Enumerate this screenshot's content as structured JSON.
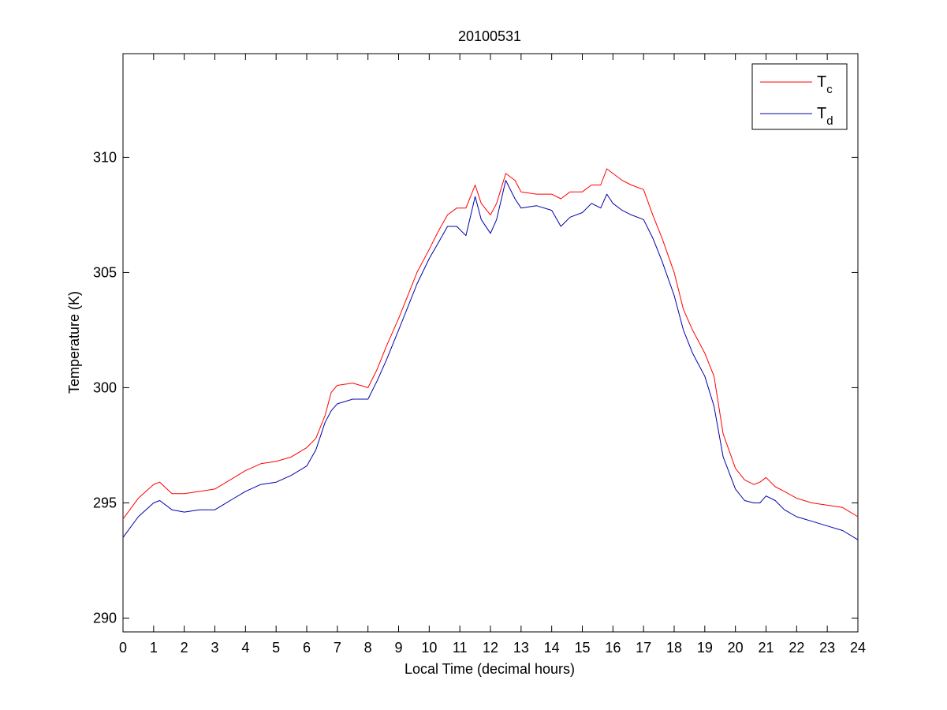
{
  "chart_data": {
    "type": "line",
    "title": "20100531",
    "xlabel": "Local Time (decimal hours)",
    "ylabel": "Temperature (K)",
    "xlim": [
      0,
      24
    ],
    "ylim": [
      289.4,
      314.5
    ],
    "xticks": [
      "0",
      "1",
      "2",
      "3",
      "4",
      "5",
      "6",
      "7",
      "8",
      "9",
      "10",
      "11",
      "12",
      "13",
      "14",
      "15",
      "16",
      "17",
      "18",
      "19",
      "20",
      "21",
      "22",
      "23",
      "24"
    ],
    "yticks": [
      "290",
      "295",
      "300",
      "305",
      "310"
    ],
    "grid": false,
    "legend": {
      "placement": "top-right",
      "entries": [
        {
          "base": "T",
          "sub": "c",
          "color": "#ff0000"
        },
        {
          "base": "T",
          "sub": "d",
          "color": "#0000aa"
        }
      ]
    },
    "series": [
      {
        "color": "#ff0000",
        "x": [
          0,
          0.5,
          1,
          1.2,
          1.6,
          2,
          2.5,
          3,
          3.5,
          4,
          4.5,
          5,
          5.5,
          6,
          6.3,
          6.6,
          6.8,
          7,
          7.5,
          8,
          8.3,
          8.6,
          9,
          9.3,
          9.6,
          10,
          10.3,
          10.6,
          10.9,
          11.2,
          11.5,
          11.7,
          12,
          12.2,
          12.5,
          12.8,
          13,
          13.5,
          14,
          14.3,
          14.6,
          15,
          15.3,
          15.6,
          15.8,
          16,
          16.3,
          16.6,
          17,
          17.3,
          17.6,
          18,
          18.3,
          18.6,
          19,
          19.3,
          19.6,
          20,
          20.3,
          20.6,
          20.8,
          21,
          21.3,
          21.6,
          22,
          22.5,
          23,
          23.5,
          24
        ],
        "y": [
          294.3,
          295.2,
          295.8,
          295.9,
          295.4,
          295.4,
          295.5,
          295.6,
          296.0,
          296.4,
          296.7,
          296.8,
          297.0,
          297.4,
          297.8,
          298.8,
          299.8,
          300.1,
          300.2,
          300.0,
          300.8,
          301.8,
          303.0,
          304.0,
          305.0,
          306.0,
          306.8,
          307.5,
          307.8,
          307.8,
          308.8,
          308.0,
          307.5,
          308.0,
          309.3,
          309.0,
          308.5,
          308.4,
          308.4,
          308.2,
          308.5,
          308.5,
          308.8,
          308.8,
          309.5,
          309.3,
          309.0,
          308.8,
          308.6,
          307.5,
          306.5,
          305.0,
          303.4,
          302.5,
          301.5,
          300.5,
          298.0,
          296.5,
          296.0,
          295.8,
          295.9,
          296.1,
          295.7,
          295.5,
          295.2,
          295.0,
          294.9,
          294.8,
          294.4
        ]
      },
      {
        "color": "#0000aa",
        "x": [
          0,
          0.5,
          1,
          1.2,
          1.6,
          2,
          2.5,
          3,
          3.5,
          4,
          4.5,
          5,
          5.5,
          6,
          6.3,
          6.6,
          6.8,
          7,
          7.5,
          8,
          8.3,
          8.6,
          9,
          9.3,
          9.6,
          10,
          10.3,
          10.6,
          10.9,
          11.2,
          11.5,
          11.7,
          12,
          12.2,
          12.5,
          12.8,
          13,
          13.5,
          14,
          14.3,
          14.6,
          15,
          15.3,
          15.6,
          15.8,
          16,
          16.3,
          16.6,
          17,
          17.3,
          17.6,
          18,
          18.3,
          18.6,
          19,
          19.3,
          19.6,
          20,
          20.3,
          20.6,
          20.8,
          21,
          21.3,
          21.6,
          22,
          22.5,
          23,
          23.5,
          24
        ],
        "y": [
          293.5,
          294.4,
          295.0,
          295.1,
          294.7,
          294.6,
          294.7,
          294.7,
          295.1,
          295.5,
          295.8,
          295.9,
          296.2,
          296.6,
          297.3,
          298.5,
          299.0,
          299.3,
          299.5,
          299.5,
          300.3,
          301.2,
          302.5,
          303.5,
          304.5,
          305.6,
          306.3,
          307.0,
          307.0,
          306.6,
          308.3,
          307.3,
          306.7,
          307.3,
          309.0,
          308.2,
          307.8,
          307.9,
          307.7,
          307.0,
          307.4,
          307.6,
          308.0,
          307.8,
          308.4,
          308.0,
          307.7,
          307.5,
          307.3,
          306.5,
          305.5,
          304.0,
          302.5,
          301.5,
          300.5,
          299.2,
          297.0,
          295.6,
          295.1,
          295.0,
          295.0,
          295.3,
          295.1,
          294.7,
          294.4,
          294.2,
          294.0,
          293.8,
          293.4
        ]
      }
    ]
  }
}
